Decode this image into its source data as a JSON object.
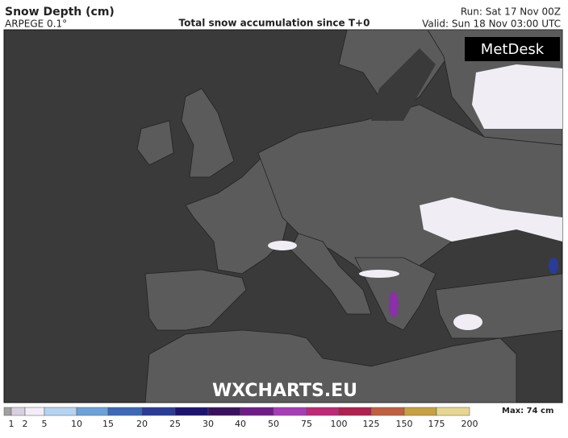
{
  "header": {
    "title": "Snow Depth (cm)",
    "model": "ARPEGE 0.1°",
    "subtitle": "Total snow accumulation since T+0",
    "run": "Run: Sat 17 Nov 00Z",
    "valid": "Valid: Sun 18 Nov 03:00 UTC"
  },
  "map": {
    "logo": "MetDesk",
    "watermark": "WXCHARTS.EU"
  },
  "legend": {
    "labels": [
      1,
      2,
      5,
      10,
      15,
      20,
      25,
      30,
      40,
      50,
      75,
      100,
      125,
      150,
      175,
      200
    ],
    "colors": [
      "#a0a0a0",
      "#d8d0e0",
      "#f2ecf6",
      "#b4d4f2",
      "#6ca2da",
      "#3c6ab8",
      "#283c98",
      "#1c1470",
      "#3a1060",
      "#701c88",
      "#a83cb8",
      "#c02878",
      "#b02050",
      "#c06040",
      "#c8a040",
      "#e6d690"
    ],
    "max": "Max: 74 cm"
  }
}
